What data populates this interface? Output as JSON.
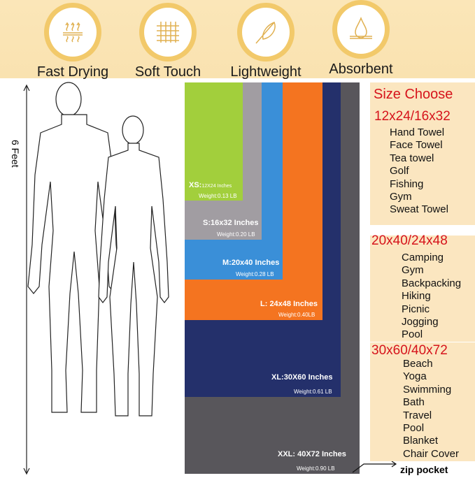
{
  "features": [
    {
      "label": "Fast Drying",
      "icon": "heat-waves-icon"
    },
    {
      "label": "Soft Touch",
      "icon": "woven-fabric-icon"
    },
    {
      "label": "Lightweight",
      "icon": "feather-icon"
    },
    {
      "label": "Absorbent",
      "icon": "water-drop-icon"
    }
  ],
  "height_label": "6 Feet",
  "towels": [
    {
      "size": "XS:",
      "dims": "12X24 Inches",
      "weight": "Weight:0.13 LB",
      "color": "#a2cf3c"
    },
    {
      "size": "S:16x32 Inches",
      "weight": "Weight:0.20 LB",
      "color": "#a19da2"
    },
    {
      "size": "M:20x40 Inches",
      "weight": "Weight:0.28 LB",
      "color": "#3a8fd8"
    },
    {
      "size": "L: 24x48 Inches",
      "weight": "Weight:0.40LB",
      "color": "#f47420"
    },
    {
      "size": "XL:30X60 Inches",
      "weight": "Weight:0.61 LB",
      "color": "#24306b"
    },
    {
      "size": "XXL: 40X72 Inches",
      "weight": "Weight:0.90 LB",
      "color": "#58565b"
    }
  ],
  "zip_label": "zip pocket",
  "size_choose": {
    "title": "Size Choose",
    "groups": [
      {
        "heading": "12x24/16x32",
        "uses": [
          "Hand Towel",
          "Face Towel",
          "Tea towel",
          "Golf",
          "Fishing",
          "Gym",
          "Sweat Towel"
        ]
      },
      {
        "heading": "20x40/24x48",
        "uses": [
          "Camping",
          "Gym",
          "Backpacking",
          "Hiking",
          "Picnic",
          "Jogging",
          "Pool"
        ]
      },
      {
        "heading": "30x60/40x72",
        "uses": [
          "Beach",
          "Yoga",
          "Swimming",
          "Bath",
          "Travel",
          "Pool",
          "Blanket",
          "Chair Cover"
        ]
      }
    ]
  }
}
